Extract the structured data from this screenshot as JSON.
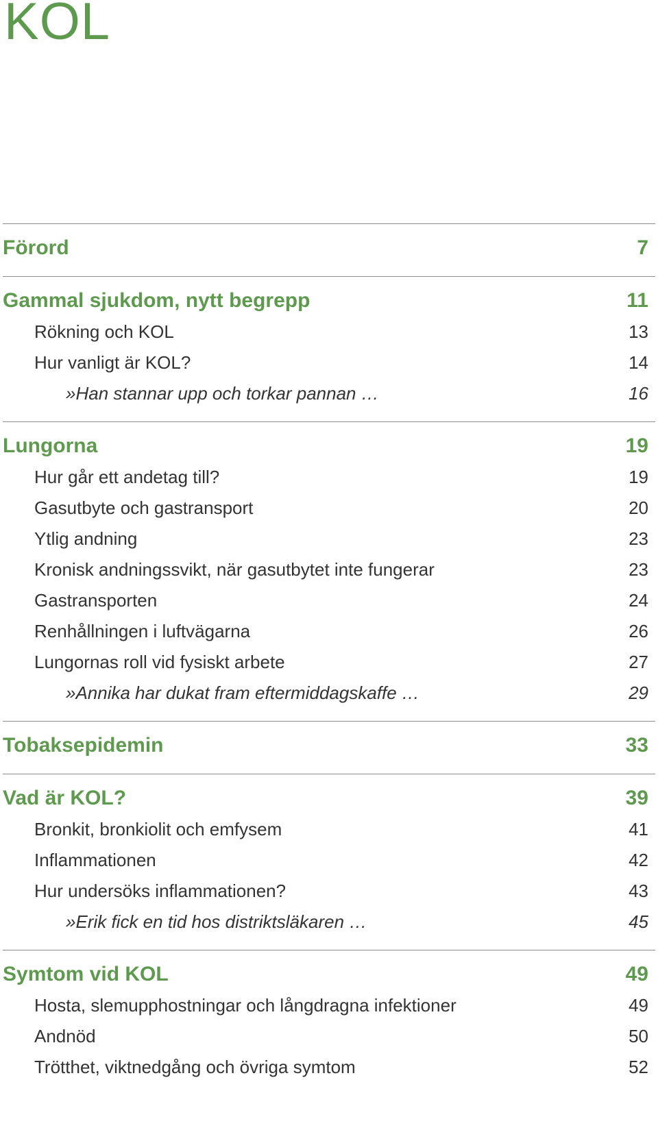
{
  "title": "KOL",
  "colors": {
    "accent": "#5e9a4e",
    "text": "#333333",
    "rule": "#8a8a8a"
  },
  "sections": [
    {
      "entries": [
        {
          "type": "chapter",
          "text": "Förord",
          "page": "7"
        }
      ]
    },
    {
      "entries": [
        {
          "type": "chapter",
          "text": "Gammal sjukdom, nytt begrepp",
          "page": "11"
        },
        {
          "type": "sub",
          "text": "Rökning och KOL",
          "page": "13"
        },
        {
          "type": "sub",
          "text": "Hur vanligt är KOL?",
          "page": "14"
        },
        {
          "type": "quote",
          "text": "»Han stannar upp och torkar pannan …",
          "page": "16"
        }
      ]
    },
    {
      "entries": [
        {
          "type": "chapter",
          "text": "Lungorna",
          "page": "19"
        },
        {
          "type": "sub",
          "text": "Hur går ett andetag till?",
          "page": "19"
        },
        {
          "type": "sub",
          "text": "Gasutbyte och gastransport",
          "page": "20"
        },
        {
          "type": "sub",
          "text": "Ytlig andning",
          "page": "23"
        },
        {
          "type": "sub",
          "text": "Kronisk andningssvikt, när gasutbytet inte fungerar",
          "page": "23"
        },
        {
          "type": "sub",
          "text": "Gastransporten",
          "page": "24"
        },
        {
          "type": "sub",
          "text": "Renhållningen i luftvägarna",
          "page": "26"
        },
        {
          "type": "sub",
          "text": "Lungornas roll vid fysiskt arbete",
          "page": "27"
        },
        {
          "type": "quote",
          "text": "»Annika har dukat fram eftermiddagskaffe …",
          "page": "29"
        }
      ]
    },
    {
      "entries": [
        {
          "type": "chapter",
          "text": "Tobaksepidemin",
          "page": "33"
        }
      ]
    },
    {
      "entries": [
        {
          "type": "chapter",
          "text": "Vad är KOL?",
          "page": "39"
        },
        {
          "type": "sub",
          "text": "Bronkit, bronkiolit och emfysem",
          "page": "41"
        },
        {
          "type": "sub",
          "text": "Inflammationen",
          "page": "42"
        },
        {
          "type": "sub",
          "text": "Hur undersöks inflammationen?",
          "page": "43"
        },
        {
          "type": "quote",
          "text": "»Erik fick en tid hos distriktsläkaren …",
          "page": "45"
        }
      ]
    },
    {
      "entries": [
        {
          "type": "chapter",
          "text": "Symtom vid KOL",
          "page": "49"
        },
        {
          "type": "sub",
          "text": "Hosta, slemupphostningar och långdragna infektioner",
          "page": "49"
        },
        {
          "type": "sub",
          "text": "Andnöd",
          "page": "50"
        },
        {
          "type": "sub",
          "text": "Trötthet, viktnedgång och övriga symtom",
          "page": "52"
        }
      ]
    }
  ]
}
